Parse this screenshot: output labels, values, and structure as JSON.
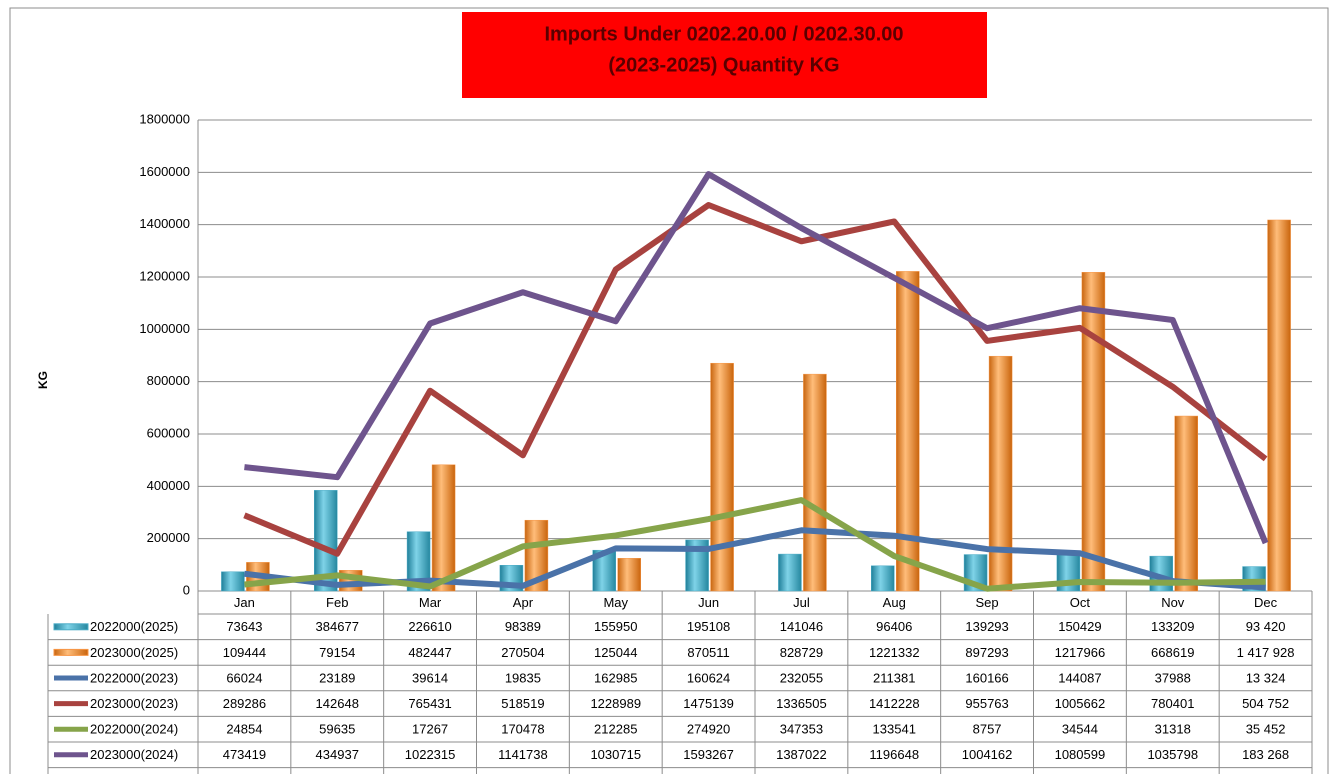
{
  "chart_data": {
    "type": "bar-line",
    "title": [
      "Imports Under 0202.20.00 / 0202.30.00",
      "(2023-2025)  Quantity KG"
    ],
    "ylabel": "KG",
    "categories": [
      "Jan",
      "Feb",
      "Mar",
      "Apr",
      "May",
      "Jun",
      "Jul",
      "Aug",
      "Sep",
      "Oct",
      "Nov",
      "Dec"
    ],
    "ylim": [
      0,
      1800000
    ],
    "yticks": [
      0,
      200000,
      400000,
      600000,
      800000,
      1000000,
      1200000,
      1400000,
      1600000,
      1800000
    ],
    "grid": true,
    "series": [
      {
        "name": "2022000(2025)",
        "kind": "bar",
        "color": "#4bacc6",
        "values": [
          73643,
          384677,
          226610,
          98389,
          155950,
          195108,
          141046,
          96406,
          139293,
          150429,
          133209,
          93420
        ],
        "value_labels": [
          null,
          null,
          null,
          null,
          null,
          null,
          null,
          null,
          null,
          null,
          null,
          "93 420"
        ]
      },
      {
        "name": "2023000(2025)",
        "kind": "bar",
        "color": "#f79646",
        "values": [
          109444,
          79154,
          482447,
          270504,
          125044,
          870511,
          828729,
          1221332,
          897293,
          1217966,
          668619,
          1417928
        ],
        "value_labels": [
          null,
          null,
          null,
          null,
          null,
          null,
          null,
          null,
          null,
          null,
          null,
          "1 417 928"
        ]
      },
      {
        "name": "2022000(2023)",
        "kind": "line",
        "color": "#4a72a8",
        "values": [
          66024,
          23189,
          39614,
          19835,
          162985,
          160624,
          232055,
          211381,
          160166,
          144087,
          37988,
          13324
        ],
        "value_labels": [
          null,
          null,
          null,
          null,
          null,
          null,
          null,
          null,
          null,
          null,
          null,
          "13 324"
        ]
      },
      {
        "name": "2023000(2023)",
        "kind": "line",
        "color": "#a8423f",
        "values": [
          289286,
          142648,
          765431,
          518519,
          1228989,
          1475139,
          1336505,
          1412228,
          955763,
          1005662,
          780401,
          504752
        ],
        "value_labels": [
          null,
          null,
          null,
          null,
          null,
          null,
          null,
          null,
          null,
          null,
          null,
          "504 752"
        ]
      },
      {
        "name": "2022000(2024)",
        "kind": "line",
        "color": "#86a44a",
        "values": [
          24854,
          59635,
          17267,
          170478,
          212285,
          274920,
          347353,
          133541,
          8757,
          34544,
          31318,
          35452
        ],
        "value_labels": [
          null,
          null,
          null,
          null,
          null,
          null,
          null,
          null,
          null,
          null,
          null,
          "35 452"
        ]
      },
      {
        "name": "2023000(2024)",
        "kind": "line",
        "color": "#6e548d",
        "values": [
          473419,
          434937,
          1022315,
          1141738,
          1030715,
          1593267,
          1387022,
          1196648,
          1004162,
          1080599,
          1035798,
          183268
        ],
        "value_labels": [
          null,
          null,
          null,
          null,
          null,
          null,
          null,
          null,
          null,
          null,
          null,
          "183 268"
        ]
      }
    ]
  }
}
